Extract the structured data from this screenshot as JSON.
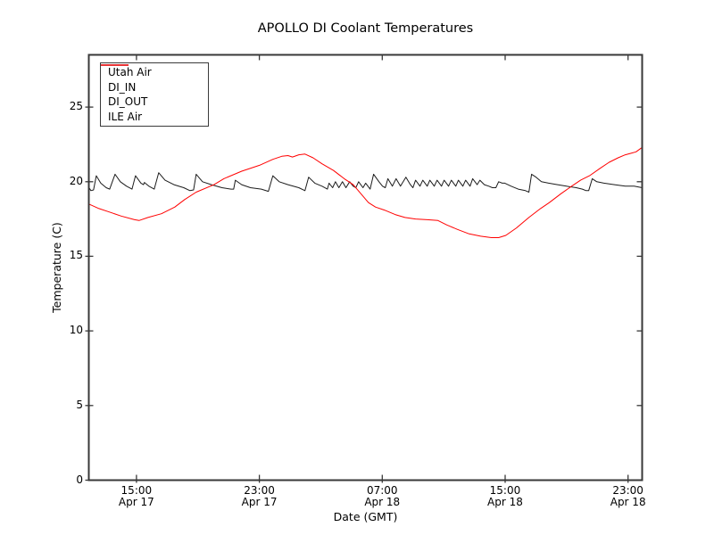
{
  "figure": {
    "title": "APOLLO DI Coolant Temperatures",
    "xlabel": "Date (GMT)",
    "ylabel": "Temperature (C)",
    "background": "#ffffff",
    "axis_color": "#383838"
  },
  "legend": {
    "position": "upper left",
    "items": [
      {
        "label": "Utah Air",
        "color": "#1c1c1c"
      },
      {
        "label": "DI_IN",
        "color": "#ffa500"
      },
      {
        "label": "DI_OUT",
        "color": "#800080"
      },
      {
        "label": "ILE Air",
        "color": "#ff0000"
      }
    ]
  },
  "chart_data": {
    "type": "line",
    "title": "APOLLO DI Coolant Temperatures",
    "xlabel": "Date (GMT)",
    "ylabel": "Temperature (C)",
    "x_unit": "hours since Apr 17 00:00 GMT",
    "xlim": [
      11.9,
      47.92
    ],
    "ylim": [
      0,
      28.5
    ],
    "grid": false,
    "legend_position": "upper left",
    "yticks": [
      0,
      5,
      10,
      15,
      20,
      25
    ],
    "xticks": [
      {
        "value": 15,
        "line1": "15:00",
        "line2": "Apr 17"
      },
      {
        "value": 23,
        "line1": "23:00",
        "line2": "Apr 17"
      },
      {
        "value": 31,
        "line1": "07:00",
        "line2": "Apr 18"
      },
      {
        "value": 39,
        "line1": "15:00",
        "line2": "Apr 18"
      },
      {
        "value": 47,
        "line1": "23:00",
        "line2": "Apr 18"
      }
    ],
    "series": [
      {
        "name": "Utah Air",
        "color": "#1c1c1c",
        "width": 1,
        "points": [
          [
            11.92,
            19.6
          ],
          [
            12.04,
            19.4
          ],
          [
            12.21,
            19.45
          ],
          [
            12.39,
            20.4
          ],
          [
            12.68,
            19.9
          ],
          [
            13.03,
            19.6
          ],
          [
            13.26,
            19.5
          ],
          [
            13.61,
            20.5
          ],
          [
            13.95,
            20.0
          ],
          [
            14.36,
            19.7
          ],
          [
            14.71,
            19.5
          ],
          [
            14.94,
            20.4
          ],
          [
            15.29,
            19.9
          ],
          [
            15.46,
            19.8
          ],
          [
            15.52,
            19.95
          ],
          [
            15.81,
            19.7
          ],
          [
            16.16,
            19.5
          ],
          [
            16.45,
            20.6
          ],
          [
            16.86,
            20.1
          ],
          [
            17.44,
            19.8
          ],
          [
            18.08,
            19.6
          ],
          [
            18.48,
            19.4
          ],
          [
            18.72,
            19.45
          ],
          [
            18.89,
            20.5
          ],
          [
            19.3,
            20.0
          ],
          [
            19.88,
            19.8
          ],
          [
            20.57,
            19.6
          ],
          [
            21.16,
            19.5
          ],
          [
            21.33,
            19.5
          ],
          [
            21.44,
            20.1
          ],
          [
            21.85,
            19.8
          ],
          [
            22.43,
            19.6
          ],
          [
            23.13,
            19.5
          ],
          [
            23.59,
            19.35
          ],
          [
            23.88,
            20.4
          ],
          [
            24.29,
            20.0
          ],
          [
            24.87,
            19.8
          ],
          [
            25.57,
            19.6
          ],
          [
            25.97,
            19.4
          ],
          [
            26.21,
            20.3
          ],
          [
            26.61,
            19.9
          ],
          [
            27.08,
            19.7
          ],
          [
            27.43,
            19.5
          ],
          [
            27.54,
            19.9
          ],
          [
            27.77,
            19.6
          ],
          [
            27.95,
            20.0
          ],
          [
            28.18,
            19.6
          ],
          [
            28.41,
            20.0
          ],
          [
            28.64,
            19.6
          ],
          [
            28.88,
            20.0
          ],
          [
            29.11,
            19.7
          ],
          [
            29.28,
            19.6
          ],
          [
            29.46,
            20.0
          ],
          [
            29.75,
            19.6
          ],
          [
            29.92,
            19.9
          ],
          [
            30.21,
            19.5
          ],
          [
            30.44,
            20.5
          ],
          [
            30.79,
            20.0
          ],
          [
            31.02,
            19.7
          ],
          [
            31.2,
            19.6
          ],
          [
            31.37,
            20.2
          ],
          [
            31.66,
            19.7
          ],
          [
            31.9,
            20.2
          ],
          [
            32.19,
            19.7
          ],
          [
            32.54,
            20.3
          ],
          [
            32.83,
            19.8
          ],
          [
            33.0,
            19.6
          ],
          [
            33.17,
            20.1
          ],
          [
            33.46,
            19.7
          ],
          [
            33.64,
            20.1
          ],
          [
            33.93,
            19.7
          ],
          [
            34.1,
            20.1
          ],
          [
            34.39,
            19.7
          ],
          [
            34.57,
            20.1
          ],
          [
            34.86,
            19.7
          ],
          [
            35.03,
            20.1
          ],
          [
            35.32,
            19.7
          ],
          [
            35.5,
            20.1
          ],
          [
            35.79,
            19.7
          ],
          [
            35.96,
            20.1
          ],
          [
            36.25,
            19.7
          ],
          [
            36.43,
            20.1
          ],
          [
            36.72,
            19.7
          ],
          [
            36.89,
            20.2
          ],
          [
            37.18,
            19.8
          ],
          [
            37.36,
            20.1
          ],
          [
            37.65,
            19.8
          ],
          [
            37.94,
            19.7
          ],
          [
            38.17,
            19.6
          ],
          [
            38.4,
            19.6
          ],
          [
            38.58,
            20.0
          ],
          [
            38.81,
            19.9
          ],
          [
            38.98,
            19.9
          ],
          [
            39.39,
            19.7
          ],
          [
            39.85,
            19.5
          ],
          [
            40.32,
            19.4
          ],
          [
            40.55,
            19.3
          ],
          [
            40.72,
            20.5
          ],
          [
            41.01,
            20.3
          ],
          [
            41.36,
            20.0
          ],
          [
            41.83,
            19.9
          ],
          [
            42.41,
            19.8
          ],
          [
            42.99,
            19.7
          ],
          [
            43.63,
            19.6
          ],
          [
            44.03,
            19.5
          ],
          [
            44.27,
            19.4
          ],
          [
            44.44,
            19.4
          ],
          [
            44.67,
            20.2
          ],
          [
            44.96,
            20.0
          ],
          [
            45.43,
            19.9
          ],
          [
            46.12,
            19.8
          ],
          [
            46.82,
            19.7
          ],
          [
            47.4,
            19.7
          ],
          [
            47.92,
            19.6
          ]
        ]
      },
      {
        "name": "DI_IN",
        "color": "#ffa500",
        "width": 1.2,
        "points": [
          [
            11.92,
            0
          ],
          [
            47.92,
            0
          ]
        ]
      },
      {
        "name": "DI_OUT",
        "color": "#800080",
        "width": 1.2,
        "points": [
          [
            11.92,
            0
          ],
          [
            47.92,
            0
          ]
        ]
      },
      {
        "name": "ILE Air",
        "color": "#ff0000",
        "width": 1,
        "points": [
          [
            11.92,
            18.5
          ],
          [
            12.56,
            18.2
          ],
          [
            13.14,
            18.0
          ],
          [
            14.01,
            17.7
          ],
          [
            14.88,
            17.45
          ],
          [
            15.17,
            17.4
          ],
          [
            15.75,
            17.6
          ],
          [
            16.63,
            17.85
          ],
          [
            17.5,
            18.3
          ],
          [
            18.14,
            18.8
          ],
          [
            18.89,
            19.3
          ],
          [
            20.05,
            19.8
          ],
          [
            20.69,
            20.2
          ],
          [
            21.85,
            20.7
          ],
          [
            23.01,
            21.1
          ],
          [
            23.88,
            21.5
          ],
          [
            24.46,
            21.7
          ],
          [
            24.87,
            21.75
          ],
          [
            25.16,
            21.65
          ],
          [
            25.57,
            21.8
          ],
          [
            25.97,
            21.85
          ],
          [
            26.5,
            21.6
          ],
          [
            27.08,
            21.2
          ],
          [
            27.83,
            20.75
          ],
          [
            28.53,
            20.2
          ],
          [
            29.11,
            19.8
          ],
          [
            29.69,
            19.1
          ],
          [
            30.1,
            18.6
          ],
          [
            30.56,
            18.3
          ],
          [
            31.14,
            18.1
          ],
          [
            31.84,
            17.8
          ],
          [
            32.48,
            17.6
          ],
          [
            33.17,
            17.5
          ],
          [
            33.93,
            17.45
          ],
          [
            34.63,
            17.4
          ],
          [
            35.21,
            17.1
          ],
          [
            35.9,
            16.8
          ],
          [
            36.66,
            16.5
          ],
          [
            37.41,
            16.35
          ],
          [
            38.11,
            16.25
          ],
          [
            38.58,
            16.25
          ],
          [
            39.04,
            16.4
          ],
          [
            39.74,
            16.9
          ],
          [
            40.55,
            17.6
          ],
          [
            41.3,
            18.2
          ],
          [
            41.88,
            18.6
          ],
          [
            42.64,
            19.2
          ],
          [
            43.33,
            19.7
          ],
          [
            43.91,
            20.1
          ],
          [
            44.49,
            20.4
          ],
          [
            45.19,
            20.9
          ],
          [
            45.77,
            21.3
          ],
          [
            46.35,
            21.6
          ],
          [
            46.82,
            21.8
          ],
          [
            47.17,
            21.9
          ],
          [
            47.52,
            22.0
          ],
          [
            47.92,
            22.3
          ]
        ]
      }
    ]
  }
}
